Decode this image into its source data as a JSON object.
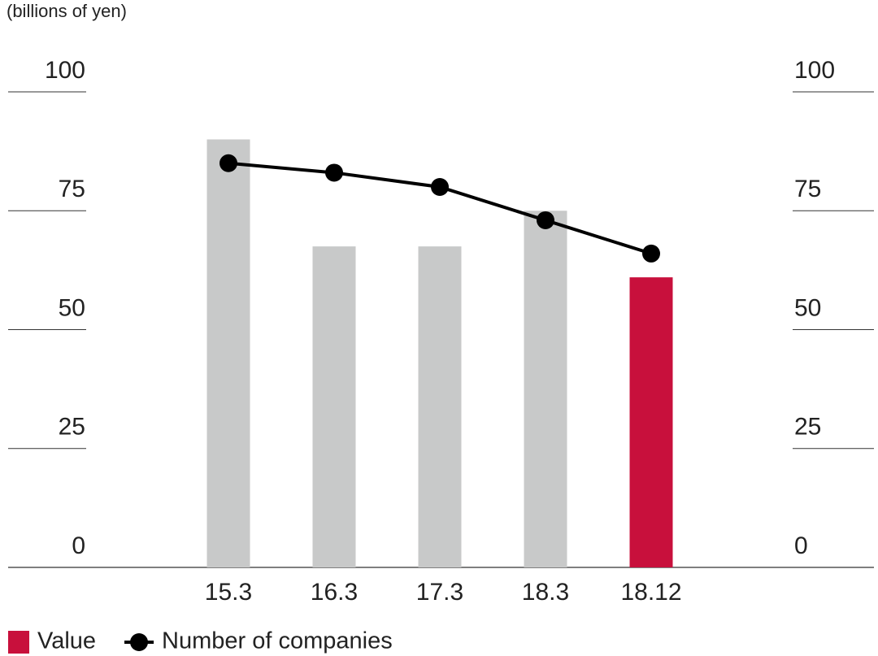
{
  "chart_data": {
    "type": "bar",
    "unit_label": "(billions of yen)",
    "categories": [
      "15.3",
      "16.3",
      "17.3",
      "18.3",
      "18.12"
    ],
    "series": [
      {
        "name": "Value",
        "type": "bar",
        "color": "#c8103c",
        "bar_colors": [
          "#c8c9c9",
          "#c8c9c9",
          "#c8c9c9",
          "#c8c9c9",
          "#c8103c"
        ],
        "values": [
          90,
          67.5,
          67.5,
          75,
          61
        ]
      },
      {
        "name": "Number of companies",
        "type": "line",
        "axis": "y2",
        "color": "#000000",
        "values": [
          85,
          83,
          80,
          73,
          66
        ]
      }
    ],
    "ylim": [
      0,
      100
    ],
    "yticks": [
      0,
      25,
      50,
      75,
      100
    ],
    "y2lim": [
      0,
      100
    ],
    "y2ticks": [
      0,
      25,
      50,
      75,
      100
    ]
  }
}
